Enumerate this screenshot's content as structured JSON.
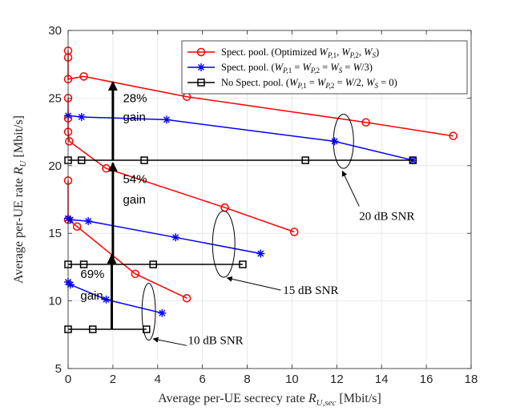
{
  "chart_data": {
    "type": "line",
    "title": "",
    "xlabel": "Average per-UE secrecy rate R_{U,sec} [Mbit/s]",
    "ylabel": "Average per-UE rate R_U [Mbit/s]",
    "xlabel_main": "Average per-UE secrecy rate ",
    "xlabel_sym": "R",
    "xlabel_sub": "U,sec",
    "xlabel_unit": " [Mbit/s]",
    "ylabel_main": "Average per-UE rate ",
    "ylabel_sym": "R",
    "ylabel_sub": "U",
    "ylabel_unit": "  [Mbit/s]",
    "xlim": [
      0,
      18
    ],
    "ylim": [
      5,
      30
    ],
    "xticks": [
      0,
      2,
      4,
      6,
      8,
      10,
      12,
      14,
      16,
      18
    ],
    "yticks": [
      5,
      10,
      15,
      20,
      25,
      30
    ],
    "grid": true,
    "legend": {
      "placement": "top-right",
      "entries": [
        {
          "key": "optimized",
          "text": "Spect. pool. (Optimized W_{P,1}, W_{P,2}, W_S)"
        },
        {
          "key": "equal",
          "text": "Spect. pool. (W_{P,1} = W_{P,2} = W_S = W/3)"
        },
        {
          "key": "nopool",
          "text": "No Spect. pool. (W_{P,1} = W_{P,2} = W/2, W_S = 0)"
        }
      ]
    },
    "series": [
      {
        "name": "Spect. pool. (Optimized) 20 dB SNR",
        "group": "optimized",
        "color": "#ff0000",
        "marker": "circle",
        "x": [
          0,
          0,
          0,
          0.7,
          5.3,
          13.3,
          17.2
        ],
        "y": [
          28.5,
          28.0,
          26.4,
          26.6,
          25.1,
          23.2,
          22.2
        ]
      },
      {
        "name": "Spect. pool. (Optimized) 15 dB SNR",
        "group": "optimized",
        "color": "#ff0000",
        "marker": "circle",
        "x": [
          0,
          0,
          0,
          0.05,
          1.7,
          7.0,
          10.1
        ],
        "y": [
          25.0,
          23.5,
          22.5,
          21.8,
          19.8,
          16.9,
          15.1
        ]
      },
      {
        "name": "Spect. pool. (Optimized) 10 dB SNR",
        "group": "optimized",
        "color": "#ff0000",
        "marker": "circle",
        "x": [
          0,
          0,
          0.4,
          3.0,
          5.3
        ],
        "y": [
          18.9,
          16.0,
          15.5,
          12.0,
          10.2
        ]
      },
      {
        "name": "Spect. pool. (Equal) 20 dB SNR",
        "group": "equal",
        "color": "#0000ff",
        "marker": "asterisk",
        "x": [
          0,
          0.6,
          4.4,
          11.9,
          15.4
        ],
        "y": [
          23.7,
          23.6,
          23.4,
          21.8,
          20.4
        ]
      },
      {
        "name": "Spect. pool. (Equal) 15 dB SNR",
        "group": "equal",
        "color": "#0000ff",
        "marker": "asterisk",
        "x": [
          0,
          0.1,
          0.9,
          4.8,
          8.6
        ],
        "y": [
          16.1,
          16.0,
          15.9,
          14.7,
          13.5
        ]
      },
      {
        "name": "Spect. pool. (Equal) 10 dB SNR",
        "group": "equal",
        "color": "#0000ff",
        "marker": "asterisk",
        "x": [
          0,
          0.1,
          1.7,
          4.2
        ],
        "y": [
          11.4,
          11.2,
          10.1,
          9.1
        ]
      },
      {
        "name": "No Spect. pool. 20 dB SNR",
        "group": "nopool",
        "color": "#000000",
        "marker": "square",
        "x": [
          0,
          0.6,
          3.4,
          10.6,
          15.4
        ],
        "y": [
          20.4,
          20.4,
          20.4,
          20.4,
          20.4
        ]
      },
      {
        "name": "No Spect. pool. 15 dB SNR",
        "group": "nopool",
        "color": "#000000",
        "marker": "square",
        "x": [
          0,
          0.7,
          3.8,
          7.8
        ],
        "y": [
          12.7,
          12.7,
          12.7,
          12.7
        ]
      },
      {
        "name": "No Spect. pool. 10 dB SNR",
        "group": "nopool",
        "color": "#000000",
        "marker": "square",
        "x": [
          0,
          1.1,
          3.5
        ],
        "y": [
          7.9,
          7.9,
          7.9
        ]
      }
    ],
    "annotations": {
      "gains": [
        {
          "line1": "28%",
          "line2": "gain",
          "arrow_x": 2.0,
          "arrow_from": 20.4,
          "arrow_to": 26.2,
          "text_x": 2.45,
          "text_y1": 24.7,
          "text_y2": 23.3
        },
        {
          "line1": "54%",
          "line2": "gain",
          "arrow_x": 2.0,
          "arrow_from": 12.7,
          "arrow_to": 20.2,
          "text_x": 2.45,
          "text_y1": 18.7,
          "text_y2": 17.2
        },
        {
          "line1": "69%",
          "line2": "gain",
          "arrow_x": 1.95,
          "arrow_from": 7.9,
          "arrow_to": 13.4,
          "text_x": 0.55,
          "text_y1": 11.7,
          "text_y2": 10.1
        }
      ],
      "snr_labels": [
        {
          "text": "20 dB SNR",
          "ellipse_cx": 12.3,
          "ellipse_cy": 21.8,
          "ellipse_rx": 0.45,
          "ellipse_ry": 2.0,
          "arrow_from_x": 13.0,
          "arrow_from_y": 17.0,
          "arrow_to_x": 12.25,
          "arrow_to_y": 19.6,
          "text_x": 13.0,
          "text_y": 16.0
        },
        {
          "text": "15 dB SNR",
          "ellipse_cx": 6.95,
          "ellipse_cy": 14.2,
          "ellipse_rx": 0.5,
          "ellipse_ry": 2.45,
          "arrow_from_x": 9.5,
          "arrow_from_y": 10.8,
          "arrow_to_x": 7.1,
          "arrow_to_y": 11.7,
          "text_x": 9.6,
          "text_y": 10.5
        },
        {
          "text": "10 dB SNR",
          "ellipse_cx": 3.6,
          "ellipse_cy": 9.2,
          "ellipse_rx": 0.3,
          "ellipse_ry": 2.1,
          "arrow_from_x": 5.3,
          "arrow_from_y": 6.7,
          "arrow_to_x": 3.8,
          "arrow_to_y": 7.2,
          "text_x": 5.35,
          "text_y": 6.8
        }
      ]
    }
  }
}
